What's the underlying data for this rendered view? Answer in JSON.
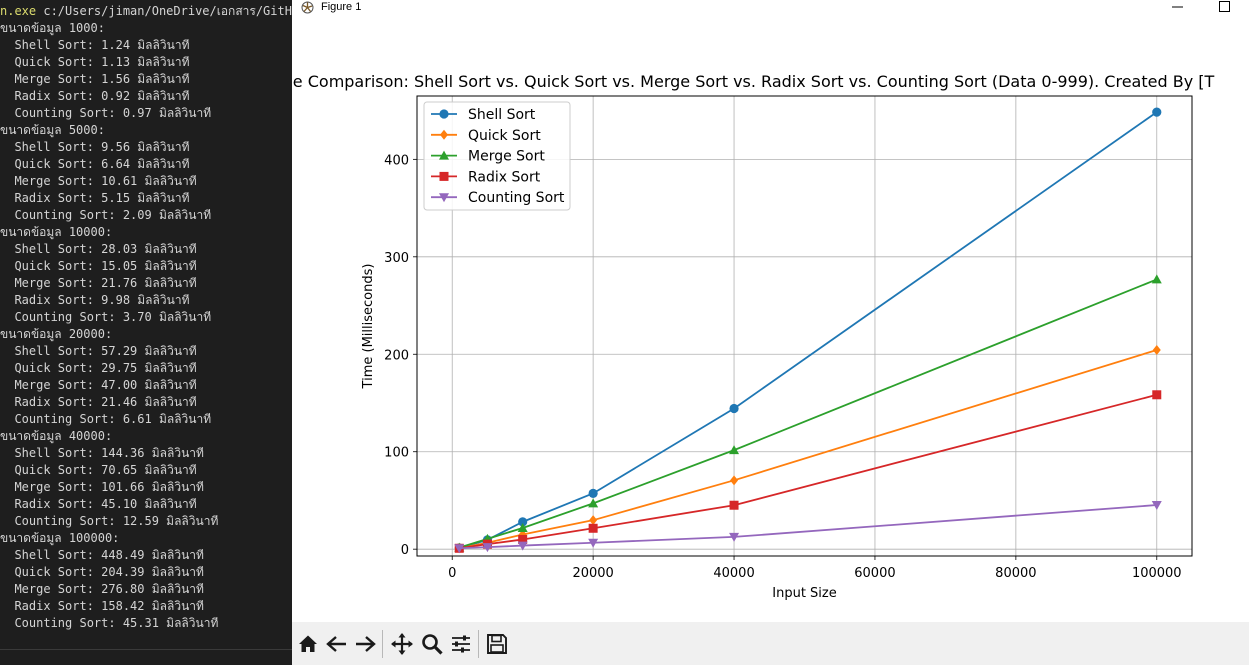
{
  "terminal": {
    "lines": [
      {
        "exe": "n.exe",
        "rest": " c:/Users/jiman/OneDrive/เอกสาร/GitHu"
      },
      {
        "text": "ขนาดข้อมูล 1000:"
      },
      {
        "text": "  Shell Sort: 1.24 มิลลิวินาที"
      },
      {
        "text": "  Quick Sort: 1.13 มิลลิวินาที"
      },
      {
        "text": "  Merge Sort: 1.56 มิลลิวินาที"
      },
      {
        "text": "  Radix Sort: 0.92 มิลลิวินาที"
      },
      {
        "text": "  Counting Sort: 0.97 มิลลิวินาที"
      },
      {
        "text": "ขนาดข้อมูล 5000:"
      },
      {
        "text": "  Shell Sort: 9.56 มิลลิวินาที"
      },
      {
        "text": "  Quick Sort: 6.64 มิลลิวินาที"
      },
      {
        "text": "  Merge Sort: 10.61 มิลลิวินาที"
      },
      {
        "text": "  Radix Sort: 5.15 มิลลิวินาที"
      },
      {
        "text": "  Counting Sort: 2.09 มิลลิวินาที"
      },
      {
        "text": "ขนาดข้อมูล 10000:"
      },
      {
        "text": "  Shell Sort: 28.03 มิลลิวินาที"
      },
      {
        "text": "  Quick Sort: 15.05 มิลลิวินาที"
      },
      {
        "text": "  Merge Sort: 21.76 มิลลิวินาที"
      },
      {
        "text": "  Radix Sort: 9.98 มิลลิวินาที"
      },
      {
        "text": "  Counting Sort: 3.70 มิลลิวินาที"
      },
      {
        "text": "ขนาดข้อมูล 20000:"
      },
      {
        "text": "  Shell Sort: 57.29 มิลลิวินาที"
      },
      {
        "text": "  Quick Sort: 29.75 มิลลิวินาที"
      },
      {
        "text": "  Merge Sort: 47.00 มิลลิวินาที"
      },
      {
        "text": "  Radix Sort: 21.46 มิลลิวินาที"
      },
      {
        "text": "  Counting Sort: 6.61 มิลลิวินาที"
      },
      {
        "text": "ขนาดข้อมูล 40000:"
      },
      {
        "text": "  Shell Sort: 144.36 มิลลิวินาที"
      },
      {
        "text": "  Quick Sort: 70.65 มิลลิวินาที"
      },
      {
        "text": "  Merge Sort: 101.66 มิลลิวินาที"
      },
      {
        "text": "  Radix Sort: 45.10 มิลลิวินาที"
      },
      {
        "text": "  Counting Sort: 12.59 มิลลิวินาที"
      },
      {
        "text": "ขนาดข้อมูล 100000:"
      },
      {
        "text": "  Shell Sort: 448.49 มิลลิวินาที"
      },
      {
        "text": "  Quick Sort: 204.39 มิลลิวินาที"
      },
      {
        "text": "  Merge Sort: 276.80 มิลลิวินาที"
      },
      {
        "text": "  Radix Sort: 158.42 มิลลิวินาที"
      },
      {
        "text": "  Counting Sort: 45.31 มิลลิวินาที"
      }
    ]
  },
  "window": {
    "title": "Figure 1",
    "icons": {
      "app": "matplotlib-icon",
      "minimize": "minimize-icon",
      "maximize": "maximize-icon"
    }
  },
  "toolbar": {
    "buttons": [
      "home-icon",
      "back-icon",
      "forward-icon",
      "pan-icon",
      "zoom-icon",
      "configure-subplots-icon",
      "save-icon"
    ]
  },
  "chart_data": {
    "type": "line",
    "title": "ce Comparison: Shell Sort vs. Quick Sort vs. Merge Sort vs. Radix Sort vs. Counting Sort (Data 0-999). Created By [T",
    "xlabel": "Input Size",
    "ylabel": "Time (Milliseconds)",
    "x": [
      1000,
      5000,
      10000,
      20000,
      40000,
      100000
    ],
    "xticks": [
      "0",
      "20000",
      "40000",
      "60000",
      "80000",
      "100000"
    ],
    "yticks": [
      "0",
      "100",
      "200",
      "300",
      "400"
    ],
    "xlim": [
      -5000,
      105000
    ],
    "ylim": [
      -7,
      465
    ],
    "grid": true,
    "legend_position": "upper-left",
    "series": [
      {
        "name": "Shell Sort",
        "color": "#1f77b4",
        "marker": "circle",
        "values": [
          1.24,
          9.56,
          28.03,
          57.29,
          144.36,
          448.49
        ]
      },
      {
        "name": "Quick Sort",
        "color": "#ff7f0e",
        "marker": "diamond",
        "values": [
          1.13,
          6.64,
          15.05,
          29.75,
          70.65,
          204.39
        ]
      },
      {
        "name": "Merge Sort",
        "color": "#2ca02c",
        "marker": "triangle-up",
        "values": [
          1.56,
          10.61,
          21.76,
          47.0,
          101.66,
          276.8
        ]
      },
      {
        "name": "Radix Sort",
        "color": "#d62728",
        "marker": "square",
        "values": [
          0.92,
          5.15,
          9.98,
          21.46,
          45.1,
          158.42
        ]
      },
      {
        "name": "Counting Sort",
        "color": "#9467bd",
        "marker": "triangle-down",
        "values": [
          0.97,
          2.09,
          3.7,
          6.61,
          12.59,
          45.31
        ]
      }
    ]
  }
}
